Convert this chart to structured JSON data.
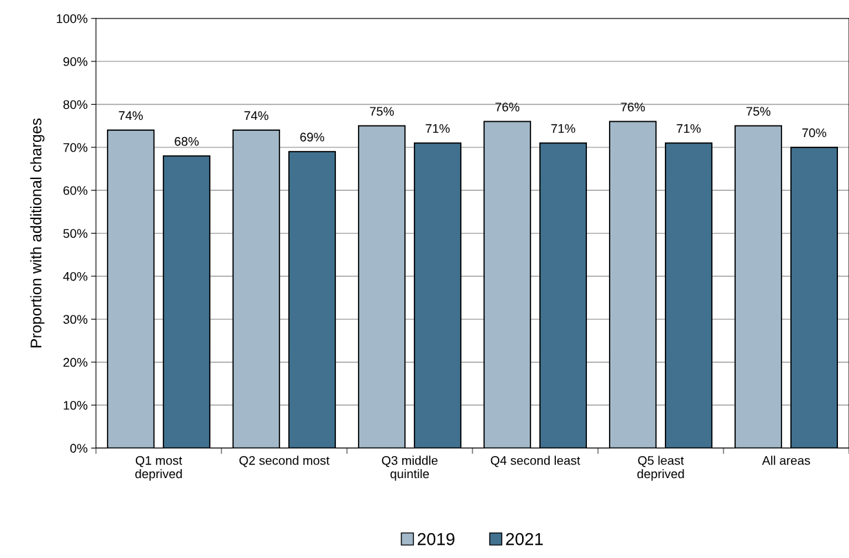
{
  "chart_data": {
    "type": "bar",
    "ylabel": "Proportion with additional charges",
    "categories": [
      "Q1 most\ndeprived",
      "Q2 second most",
      "Q3 middle\nquintile",
      "Q4 second least",
      "Q5 least\ndeprived",
      "All areas"
    ],
    "series": [
      {
        "name": "2019",
        "color": "#a3b9c9",
        "values": [
          74,
          74,
          75,
          76,
          76,
          75
        ],
        "value_labels": [
          "74%",
          "74%",
          "75%",
          "76%",
          "76%",
          "75%"
        ]
      },
      {
        "name": "2021",
        "color": "#41718f",
        "values": [
          68,
          69,
          71,
          71,
          71,
          70
        ],
        "value_labels": [
          "68%",
          "69%",
          "71%",
          "71%",
          "71%",
          "70%"
        ]
      }
    ],
    "ylim": [
      0,
      100
    ],
    "yticks": [
      {
        "value": 0,
        "label": "0%"
      },
      {
        "value": 10,
        "label": "10%"
      },
      {
        "value": 20,
        "label": "20%"
      },
      {
        "value": 30,
        "label": "30%"
      },
      {
        "value": 40,
        "label": "40%"
      },
      {
        "value": 50,
        "label": "50%"
      },
      {
        "value": 60,
        "label": "60%"
      },
      {
        "value": 70,
        "label": "70%"
      },
      {
        "value": 80,
        "label": "80%"
      },
      {
        "value": 90,
        "label": "90%"
      },
      {
        "value": 100,
        "label": "100%"
      }
    ],
    "grid": "y",
    "legend": "bottom"
  }
}
